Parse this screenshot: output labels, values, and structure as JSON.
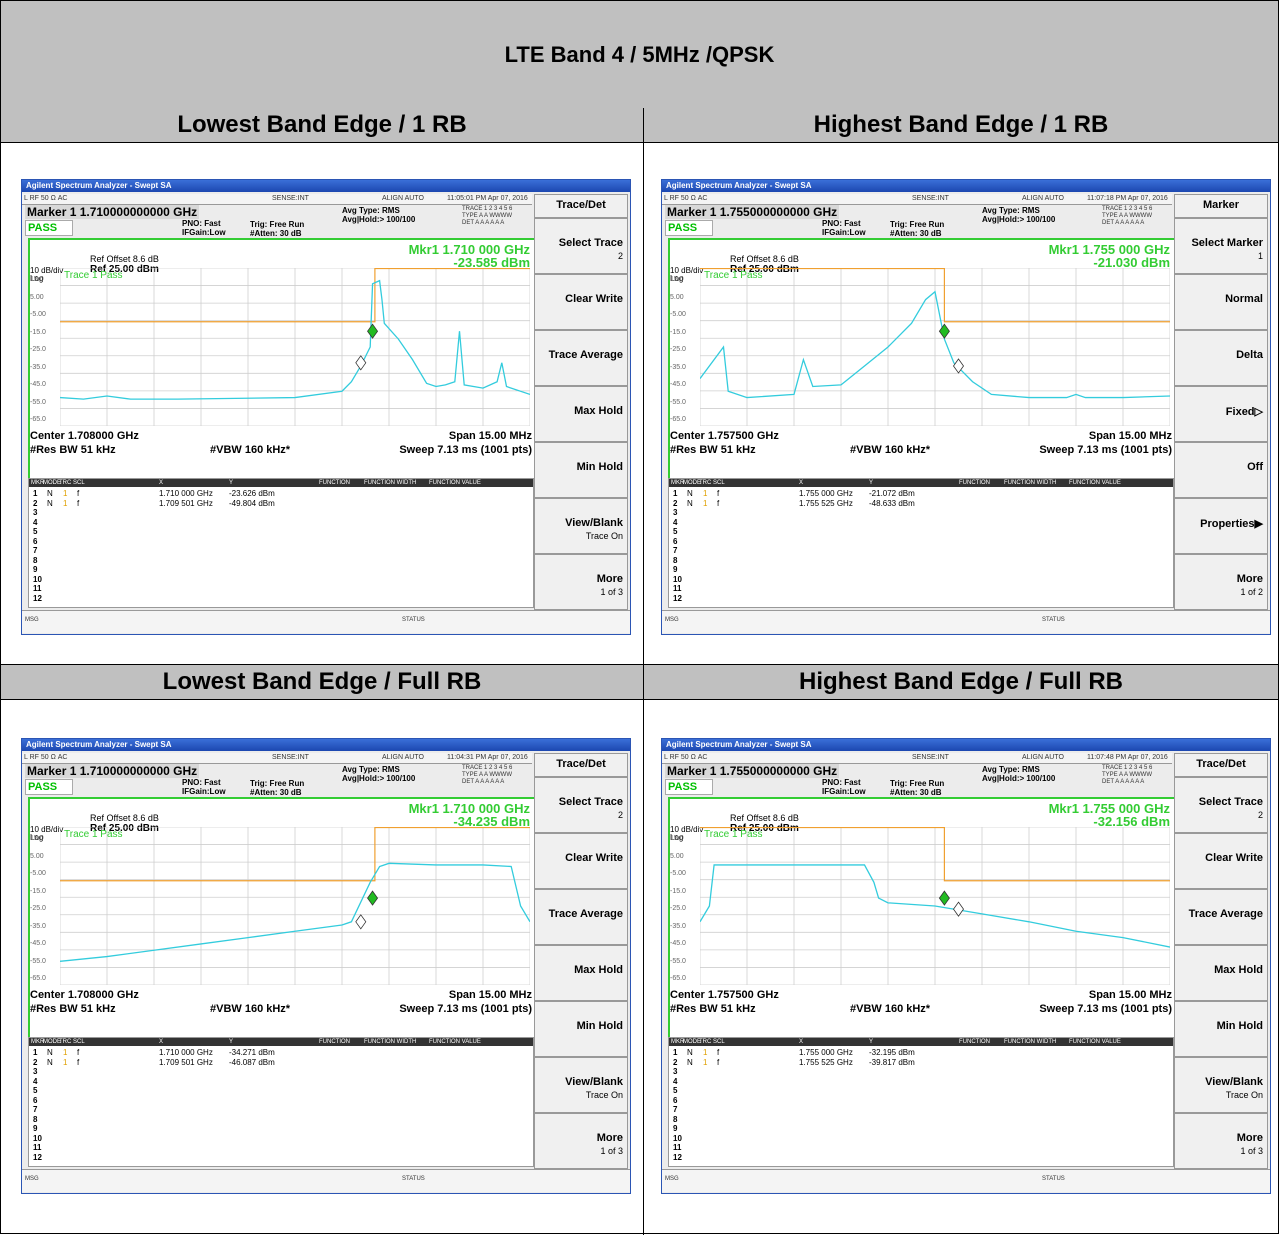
{
  "title": "LTE Band 4 / 5MHz /QPSK",
  "headers": [
    "Lowest Band Edge / 1 RB",
    "Highest Band Edge / 1 RB",
    "Lowest Band Edge / Full RB",
    "Highest Band Edge / Full RB"
  ],
  "panels": [
    {
      "window_title": "Agilent Spectrum Analyzer - Swept SA",
      "status_left": "L   RF   50 Ω  AC",
      "status_sense": "SENSE:INT",
      "status_align": "ALIGN AUTO",
      "timestamp": "11:05:01 PM Apr 07, 2016",
      "marker_line": "Marker 1  1.710000000000 GHz",
      "pass": "PASS",
      "pno": "PNO: Fast",
      "ifgain": "IFGain:Low",
      "trig": "Trig: Free Run",
      "atten": "#Atten: 30 dB",
      "avg_type": "Avg Type: RMS",
      "avg_hold": "Avg|Hold:> 100/100",
      "trace_line": "TRACE 1 2 3 4 5 6",
      "type_line": "TYPE A A WWWW",
      "det_line": "DET A A A A A A",
      "ref_offset": "Ref Offset 8.6 dB",
      "scale": "10 dB/div",
      "ref": "Ref 25.00 dBm",
      "log": "Log",
      "mkr_freq": "Mkr1 1.710 000 GHz",
      "mkr_level": "-23.585 dBm",
      "trace_pass": "Trace 1 Pass",
      "center": "Center 1.708000 GHz",
      "span": "Span 15.00 MHz",
      "rbw": "#Res BW 51 kHz",
      "vbw": "#VBW 160 kHz*",
      "sweep": "Sweep  7.13 ms (1001 pts)",
      "rows": [
        {
          "n": "1",
          "mode": "N",
          "trc": "1",
          "scl": "f",
          "x": "1.710 000 GHz",
          "y": "-23.626 dBm"
        },
        {
          "n": "2",
          "mode": "N",
          "trc": "1",
          "scl": "f",
          "x": "1.709 501 GHz",
          "y": "-49.804 dBm"
        }
      ],
      "softkeys": [
        {
          "label": "Trace/Det",
          "sub": ""
        },
        {
          "label": "Select Trace",
          "sub": "2"
        },
        {
          "label": "Clear Write",
          "sub": ""
        },
        {
          "label": "Trace Average",
          "sub": ""
        },
        {
          "label": "Max Hold",
          "sub": ""
        },
        {
          "label": "Min Hold",
          "sub": ""
        },
        {
          "label": "View/Blank",
          "sub": "Trace On"
        },
        {
          "label": "More",
          "sub": "1 of 3"
        }
      ]
    },
    {
      "window_title": "Agilent Spectrum Analyzer - Swept SA",
      "status_left": "L   RF   50 Ω  AC",
      "status_sense": "SENSE:INT",
      "status_align": "ALIGN AUTO",
      "timestamp": "11:07:18 PM Apr 07, 2016",
      "marker_line": "Marker 1  1.755000000000 GHz",
      "pass": "PASS",
      "pno": "PNO: Fast",
      "ifgain": "IFGain:Low",
      "trig": "Trig: Free Run",
      "atten": "#Atten: 30 dB",
      "avg_type": "Avg Type: RMS",
      "avg_hold": "Avg|Hold:> 100/100",
      "trace_line": "TRACE 1 2 3 4 5 6",
      "type_line": "TYPE A A WWWW",
      "det_line": "DET A A A A A A",
      "ref_offset": "Ref Offset 8.6 dB",
      "scale": "10 dB/div",
      "ref": "Ref 25.00 dBm",
      "log": "Log",
      "mkr_freq": "Mkr1 1.755 000 GHz",
      "mkr_level": "-21.030 dBm",
      "trace_pass": "Trace 1 Pass",
      "center": "Center 1.757500 GHz",
      "span": "Span 15.00 MHz",
      "rbw": "#Res BW 51 kHz",
      "vbw": "#VBW 160 kHz*",
      "sweep": "Sweep  7.13 ms (1001 pts)",
      "rows": [
        {
          "n": "1",
          "mode": "N",
          "trc": "1",
          "scl": "f",
          "x": "1.755 000 GHz",
          "y": "-21.072 dBm"
        },
        {
          "n": "2",
          "mode": "N",
          "trc": "1",
          "scl": "f",
          "x": "1.755 525 GHz",
          "y": "-48.633 dBm"
        }
      ],
      "softkeys": [
        {
          "label": "Marker",
          "sub": ""
        },
        {
          "label": "Select Marker",
          "sub": "1"
        },
        {
          "label": "Normal",
          "sub": ""
        },
        {
          "label": "Delta",
          "sub": ""
        },
        {
          "label": "Fixed▷",
          "sub": ""
        },
        {
          "label": "Off",
          "sub": ""
        },
        {
          "label": "Properties▶",
          "sub": ""
        },
        {
          "label": "More",
          "sub": "1 of 2"
        }
      ]
    },
    {
      "window_title": "Agilent Spectrum Analyzer - Swept SA",
      "status_left": "L   RF   50 Ω  AC",
      "status_sense": "SENSE:INT",
      "status_align": "ALIGN AUTO",
      "timestamp": "11:04:31 PM Apr 07, 2016",
      "marker_line": "Marker 1  1.710000000000 GHz",
      "pass": "PASS",
      "pno": "PNO: Fast",
      "ifgain": "IFGain:Low",
      "trig": "Trig: Free Run",
      "atten": "#Atten: 30 dB",
      "avg_type": "Avg Type: RMS",
      "avg_hold": "Avg|Hold:> 100/100",
      "trace_line": "TRACE 1 2 3 4 5 6",
      "type_line": "TYPE A A WWWW",
      "det_line": "DET A A A A A A",
      "ref_offset": "Ref Offset 8.6 dB",
      "scale": "10 dB/div",
      "ref": "Ref 25.00 dBm",
      "log": "Log",
      "mkr_freq": "Mkr1 1.710 000 GHz",
      "mkr_level": "-34.235 dBm",
      "trace_pass": "Trace 1 Pass",
      "center": "Center 1.708000 GHz",
      "span": "Span 15.00 MHz",
      "rbw": "#Res BW 51 kHz",
      "vbw": "#VBW 160 kHz*",
      "sweep": "Sweep  7.13 ms (1001 pts)",
      "rows": [
        {
          "n": "1",
          "mode": "N",
          "trc": "1",
          "scl": "f",
          "x": "1.710 000 GHz",
          "y": "-34.271 dBm"
        },
        {
          "n": "2",
          "mode": "N",
          "trc": "1",
          "scl": "f",
          "x": "1.709 501 GHz",
          "y": "-46.087 dBm"
        }
      ],
      "softkeys": [
        {
          "label": "Trace/Det",
          "sub": ""
        },
        {
          "label": "Select Trace",
          "sub": "2"
        },
        {
          "label": "Clear Write",
          "sub": ""
        },
        {
          "label": "Trace Average",
          "sub": ""
        },
        {
          "label": "Max Hold",
          "sub": ""
        },
        {
          "label": "Min Hold",
          "sub": ""
        },
        {
          "label": "View/Blank",
          "sub": "Trace On"
        },
        {
          "label": "More",
          "sub": "1 of 3"
        }
      ]
    },
    {
      "window_title": "Agilent Spectrum Analyzer - Swept SA",
      "status_left": "L   RF   50 Ω  AC",
      "status_sense": "SENSE:INT",
      "status_align": "ALIGN AUTO",
      "timestamp": "11:07:48 PM Apr 07, 2016",
      "marker_line": "Marker 1  1.755000000000 GHz",
      "pass": "PASS",
      "pno": "PNO: Fast",
      "ifgain": "IFGain:Low",
      "trig": "Trig: Free Run",
      "atten": "#Atten: 30 dB",
      "avg_type": "Avg Type: RMS",
      "avg_hold": "Avg|Hold:> 100/100",
      "trace_line": "TRACE 1 2 3 4 5 6",
      "type_line": "TYPE A A WWWW",
      "det_line": "DET A A A A A A",
      "ref_offset": "Ref Offset 8.6 dB",
      "scale": "10 dB/div",
      "ref": "Ref 25.00 dBm",
      "log": "Log",
      "mkr_freq": "Mkr1 1.755 000 GHz",
      "mkr_level": "-32.156 dBm",
      "trace_pass": "Trace 1 Pass",
      "center": "Center 1.757500 GHz",
      "span": "Span 15.00 MHz",
      "rbw": "#Res BW 51 kHz",
      "vbw": "#VBW 160 kHz*",
      "sweep": "Sweep  7.13 ms (1001 pts)",
      "rows": [
        {
          "n": "1",
          "mode": "N",
          "trc": "1",
          "scl": "f",
          "x": "1.755 000 GHz",
          "y": "-32.195 dBm"
        },
        {
          "n": "2",
          "mode": "N",
          "trc": "1",
          "scl": "f",
          "x": "1.755 525 GHz",
          "y": "-39.817 dBm"
        }
      ],
      "softkeys": [
        {
          "label": "Trace/Det",
          "sub": ""
        },
        {
          "label": "Select Trace",
          "sub": "2"
        },
        {
          "label": "Clear Write",
          "sub": ""
        },
        {
          "label": "Trace Average",
          "sub": ""
        },
        {
          "label": "Max Hold",
          "sub": ""
        },
        {
          "label": "Min Hold",
          "sub": ""
        },
        {
          "label": "View/Blank",
          "sub": "Trace On"
        },
        {
          "label": "More",
          "sub": "1 of 3"
        }
      ]
    }
  ],
  "y_ticks": [
    "15.0",
    "5.00",
    "-5.00",
    "-15.0",
    "-25.0",
    "-35.0",
    "-45.0",
    "-55.0",
    "-65.0"
  ],
  "table_headers": [
    "MKR",
    "MODE",
    "TRC",
    "SCL",
    "X",
    "Y",
    "FUNCTION",
    "FUNCTION WIDTH",
    "FUNCTION VALUE"
  ],
  "row_numbers": [
    "1",
    "2",
    "3",
    "4",
    "5",
    "6",
    "7",
    "8",
    "9",
    "10",
    "11",
    "12"
  ],
  "msg_label": "MSG",
  "status_label": "STATUS",
  "colors": {
    "trace": "#33ccdd",
    "limit": "#f0a030",
    "grid": "#33cc33",
    "marker1": "#22bb22",
    "header_bg": "#c0c0c0"
  }
}
